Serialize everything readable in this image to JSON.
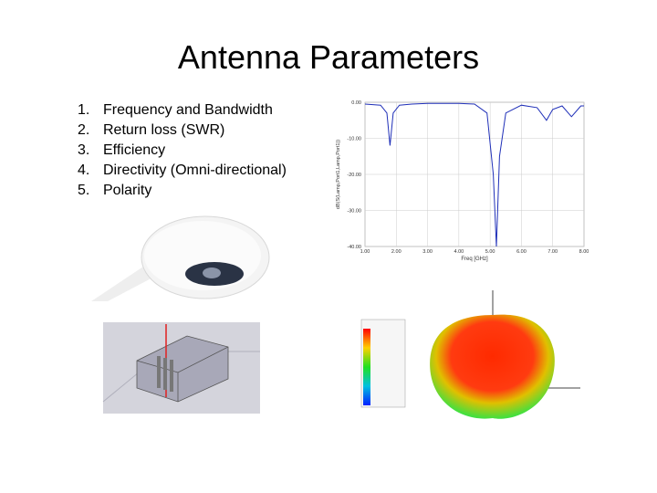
{
  "header": {
    "title": "Antenna Parameters"
  },
  "list": {
    "numbers": [
      "1.",
      "2.",
      "3.",
      "4.",
      "5."
    ],
    "items": [
      "Frequency and Bandwidth",
      "Return loss (SWR)",
      "Efficiency",
      "Directivity (Omni-directional)",
      "Polarity"
    ]
  },
  "s11_plot": {
    "x_label": "Freq [GHz]",
    "y_label": "dB(S(Lamp,Port1,Lamp,Port1))",
    "xlim": [
      1,
      8
    ],
    "ylim": [
      -40,
      0
    ],
    "xticks": [
      {
        "value": 1,
        "label": "1.00"
      },
      {
        "value": 2,
        "label": "2.00"
      },
      {
        "value": 3,
        "label": "3.00"
      },
      {
        "value": 4,
        "label": "4.00"
      },
      {
        "value": 5,
        "label": "5.00"
      },
      {
        "value": 6,
        "label": "6.00"
      },
      {
        "value": 7,
        "label": "7.00"
      },
      {
        "value": 8,
        "label": "8.00"
      }
    ],
    "yticks": [
      {
        "value": 0,
        "label": "0.00"
      },
      {
        "value": -10,
        "label": "-10.00"
      },
      {
        "value": -20,
        "label": "-20.00"
      },
      {
        "value": -30,
        "label": "-30.00"
      },
      {
        "value": -40,
        "label": "-40.00"
      }
    ],
    "color": "#1f2fb8",
    "x": [
      1,
      1.5,
      1.7,
      1.8,
      1.9,
      2.1,
      2.5,
      3,
      4,
      4.5,
      4.9,
      5.1,
      5.2,
      5.3,
      5.5,
      6,
      6.5,
      6.8,
      7,
      7.3,
      7.6,
      7.9,
      8
    ],
    "values": [
      -0.5,
      -0.8,
      -3,
      -12,
      -3,
      -0.8,
      -0.5,
      -0.3,
      -0.3,
      -0.5,
      -3,
      -20,
      -40,
      -15,
      -3,
      -0.8,
      -1.5,
      -5,
      -2,
      -1,
      -4,
      -1,
      -1
    ]
  }
}
